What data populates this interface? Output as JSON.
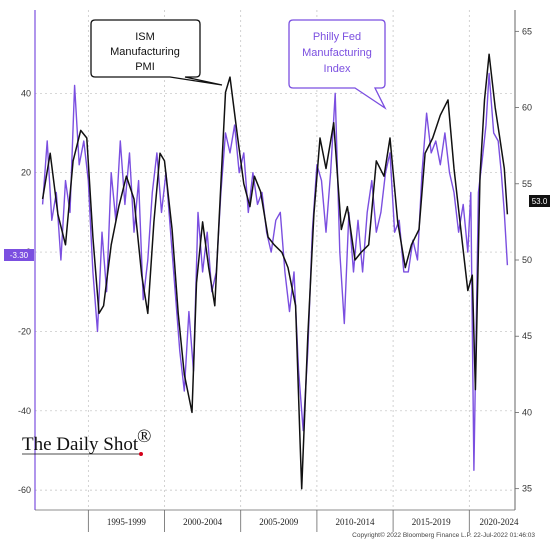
{
  "chart_data": {
    "type": "line",
    "title": "",
    "xlabel": "",
    "left_axis": {
      "ticks": [
        40,
        20,
        0,
        -20,
        -40,
        -60
      ],
      "ylim": [
        -65,
        61
      ]
    },
    "right_axis": {
      "ticks": [
        65,
        60,
        55,
        50,
        45,
        40,
        35
      ],
      "ylim": [
        33.6,
        66.4
      ]
    },
    "x_period_labels": [
      "1995-1999",
      "2000-2004",
      "2005-2009",
      "2010-2014",
      "2015-2019",
      "2020-2024"
    ],
    "x_range": [
      1991.5,
      2023.0
    ],
    "grid": true,
    "series": [
      {
        "name": "ISM Manufacturing PMI",
        "axis": "right",
        "color": "#111111",
        "last_value_label": "53.0",
        "points": [
          [
            1992.0,
            54.0
          ],
          [
            1992.5,
            57.0
          ],
          [
            1993.0,
            53.0
          ],
          [
            1993.5,
            51.0
          ],
          [
            1994.0,
            56.5
          ],
          [
            1994.5,
            58.5
          ],
          [
            1994.9,
            58.0
          ],
          [
            1995.3,
            51.5
          ],
          [
            1995.7,
            46.5
          ],
          [
            1996.0,
            47.0
          ],
          [
            1996.5,
            51.0
          ],
          [
            1997.0,
            53.5
          ],
          [
            1997.5,
            55.5
          ],
          [
            1998.0,
            54.0
          ],
          [
            1998.5,
            49.0
          ],
          [
            1998.9,
            46.5
          ],
          [
            1999.3,
            52.5
          ],
          [
            1999.7,
            57.0
          ],
          [
            2000.0,
            56.5
          ],
          [
            2000.5,
            52.0
          ],
          [
            2000.9,
            46.5
          ],
          [
            2001.3,
            42.5
          ],
          [
            2001.8,
            40.0
          ],
          [
            2002.1,
            48.5
          ],
          [
            2002.5,
            52.5
          ],
          [
            2002.9,
            49.5
          ],
          [
            2003.3,
            47.0
          ],
          [
            2003.7,
            55.0
          ],
          [
            2004.0,
            61.0
          ],
          [
            2004.3,
            62.0
          ],
          [
            2004.8,
            58.0
          ],
          [
            2005.2,
            55.0
          ],
          [
            2005.6,
            53.5
          ],
          [
            2005.9,
            55.5
          ],
          [
            2006.3,
            54.5
          ],
          [
            2006.8,
            51.5
          ],
          [
            2007.2,
            51.0
          ],
          [
            2007.7,
            50.5
          ],
          [
            2008.1,
            49.5
          ],
          [
            2008.6,
            47.0
          ],
          [
            2008.9,
            38.0
          ],
          [
            2009.0,
            35.0
          ],
          [
            2009.4,
            45.0
          ],
          [
            2009.8,
            53.0
          ],
          [
            2010.2,
            58.0
          ],
          [
            2010.6,
            56.0
          ],
          [
            2011.1,
            59.0
          ],
          [
            2011.6,
            52.0
          ],
          [
            2012.0,
            53.5
          ],
          [
            2012.5,
            50.0
          ],
          [
            2012.9,
            50.5
          ],
          [
            2013.4,
            51.0
          ],
          [
            2013.9,
            56.5
          ],
          [
            2014.4,
            55.5
          ],
          [
            2014.8,
            58.0
          ],
          [
            2015.3,
            52.5
          ],
          [
            2015.8,
            49.5
          ],
          [
            2016.2,
            51.0
          ],
          [
            2016.7,
            52.0
          ],
          [
            2017.1,
            57.0
          ],
          [
            2017.6,
            58.0
          ],
          [
            2018.1,
            59.5
          ],
          [
            2018.6,
            60.5
          ],
          [
            2019.0,
            56.0
          ],
          [
            2019.5,
            51.5
          ],
          [
            2019.9,
            48.0
          ],
          [
            2020.2,
            49.0
          ],
          [
            2020.4,
            41.5
          ],
          [
            2020.7,
            55.5
          ],
          [
            2021.0,
            60.5
          ],
          [
            2021.3,
            63.5
          ],
          [
            2021.7,
            60.0
          ],
          [
            2022.0,
            58.0
          ],
          [
            2022.3,
            56.0
          ],
          [
            2022.5,
            53.0
          ]
        ]
      },
      {
        "name": "Philly Fed Manufacturing Index",
        "axis": "left",
        "color": "#7b4fe0",
        "last_value_label": "-3.30",
        "points": [
          [
            1992.0,
            12.0
          ],
          [
            1992.3,
            28.0
          ],
          [
            1992.6,
            8.0
          ],
          [
            1992.9,
            15.0
          ],
          [
            1993.2,
            -2.0
          ],
          [
            1993.5,
            18.0
          ],
          [
            1993.8,
            10.0
          ],
          [
            1994.1,
            42.0
          ],
          [
            1994.4,
            22.0
          ],
          [
            1994.7,
            28.0
          ],
          [
            1995.0,
            18.0
          ],
          [
            1995.3,
            -5.0
          ],
          [
            1995.6,
            -20.0
          ],
          [
            1995.9,
            5.0
          ],
          [
            1996.2,
            -10.0
          ],
          [
            1996.5,
            20.0
          ],
          [
            1996.8,
            8.0
          ],
          [
            1997.1,
            28.0
          ],
          [
            1997.4,
            12.0
          ],
          [
            1997.7,
            25.0
          ],
          [
            1998.0,
            5.0
          ],
          [
            1998.3,
            18.0
          ],
          [
            1998.6,
            -12.0
          ],
          [
            1998.9,
            -2.0
          ],
          [
            1999.2,
            15.0
          ],
          [
            1999.5,
            25.0
          ],
          [
            1999.8,
            10.0
          ],
          [
            2000.1,
            20.0
          ],
          [
            2000.4,
            5.0
          ],
          [
            2000.7,
            -10.0
          ],
          [
            2001.0,
            -25.0
          ],
          [
            2001.3,
            -35.0
          ],
          [
            2001.6,
            -15.0
          ],
          [
            2001.9,
            -30.0
          ],
          [
            2002.2,
            10.0
          ],
          [
            2002.5,
            -5.0
          ],
          [
            2002.8,
            5.0
          ],
          [
            2003.1,
            -10.0
          ],
          [
            2003.4,
            -5.0
          ],
          [
            2003.7,
            15.0
          ],
          [
            2004.0,
            30.0
          ],
          [
            2004.3,
            25.0
          ],
          [
            2004.6,
            32.0
          ],
          [
            2004.9,
            20.0
          ],
          [
            2005.2,
            25.0
          ],
          [
            2005.5,
            10.0
          ],
          [
            2005.8,
            20.0
          ],
          [
            2006.1,
            12.0
          ],
          [
            2006.4,
            15.0
          ],
          [
            2006.7,
            5.0
          ],
          [
            2007.0,
            0.0
          ],
          [
            2007.3,
            8.0
          ],
          [
            2007.6,
            10.0
          ],
          [
            2007.9,
            -5.0
          ],
          [
            2008.2,
            -15.0
          ],
          [
            2008.5,
            -5.0
          ],
          [
            2008.8,
            -30.0
          ],
          [
            2009.1,
            -45.0
          ],
          [
            2009.4,
            -25.0
          ],
          [
            2009.7,
            5.0
          ],
          [
            2010.0,
            22.0
          ],
          [
            2010.3,
            18.0
          ],
          [
            2010.6,
            5.0
          ],
          [
            2010.9,
            20.0
          ],
          [
            2011.2,
            40.0
          ],
          [
            2011.5,
            0.0
          ],
          [
            2011.8,
            -18.0
          ],
          [
            2012.1,
            10.0
          ],
          [
            2012.4,
            -5.0
          ],
          [
            2012.7,
            8.0
          ],
          [
            2013.0,
            -5.0
          ],
          [
            2013.3,
            10.0
          ],
          [
            2013.6,
            18.0
          ],
          [
            2013.9,
            5.0
          ],
          [
            2014.2,
            10.0
          ],
          [
            2014.5,
            20.0
          ],
          [
            2014.8,
            25.0
          ],
          [
            2015.1,
            5.0
          ],
          [
            2015.4,
            8.0
          ],
          [
            2015.7,
            -5.0
          ],
          [
            2016.0,
            -5.0
          ],
          [
            2016.3,
            3.0
          ],
          [
            2016.6,
            -2.0
          ],
          [
            2016.9,
            20.0
          ],
          [
            2017.2,
            35.0
          ],
          [
            2017.5,
            25.0
          ],
          [
            2017.8,
            28.0
          ],
          [
            2018.1,
            22.0
          ],
          [
            2018.4,
            30.0
          ],
          [
            2018.7,
            20.0
          ],
          [
            2019.0,
            15.0
          ],
          [
            2019.3,
            5.0
          ],
          [
            2019.6,
            12.0
          ],
          [
            2019.9,
            0.0
          ],
          [
            2020.1,
            15.0
          ],
          [
            2020.3,
            -55.0
          ],
          [
            2020.6,
            15.0
          ],
          [
            2020.9,
            25.0
          ],
          [
            2021.1,
            32.0
          ],
          [
            2021.3,
            45.0
          ],
          [
            2021.6,
            30.0
          ],
          [
            2021.9,
            28.0
          ],
          [
            2022.1,
            20.0
          ],
          [
            2022.3,
            10.0
          ],
          [
            2022.5,
            -3.3
          ]
        ]
      }
    ],
    "annotations": [
      {
        "lines": [
          "ISM",
          "Manufacturing",
          "PMI"
        ],
        "color": "#111111"
      },
      {
        "lines": [
          "Philly Fed",
          "Manufacturing",
          "Index"
        ],
        "color": "#7b4fe0"
      }
    ],
    "copyright": "Copyright© 2022 Bloomberg Finance L.P.   22-Jul-2022 01:46:03"
  },
  "branding": {
    "text": "The Daily Shot",
    "mark": "®"
  }
}
